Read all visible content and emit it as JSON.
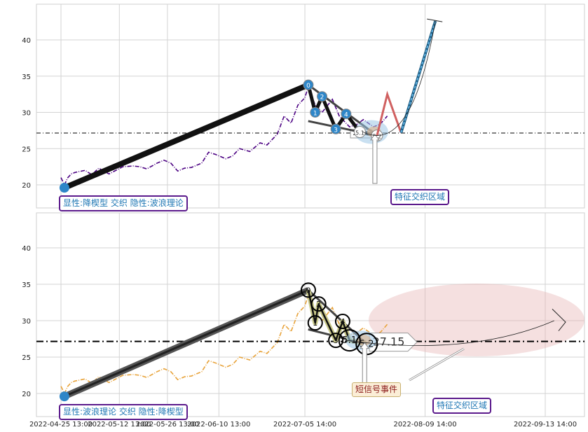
{
  "chart_data": [
    {
      "type": "line",
      "panel": "top",
      "ylim": [
        16.5,
        45
      ],
      "yticks": [
        20,
        25,
        30,
        35,
        40
      ],
      "grid": true,
      "series": [
        {
          "values": [
            [
              "2022-04-25 13:00",
              21.0
            ],
            [
              "2022-04-26 13:00",
              20.0
            ],
            [
              "2022-04-27 13:00",
              21.0
            ],
            [
              "2022-04-28 13:00",
              21.5
            ],
            [
              "2022-04-29 13:00",
              21.7
            ],
            [
              "2022-05-02 13:00",
              22.0
            ],
            [
              "2022-05-04 13:00",
              21.4
            ],
            [
              "2022-05-06 13:00",
              22.3
            ],
            [
              "2022-05-09 13:00",
              21.5
            ],
            [
              "2022-05-11 13:00",
              22.0
            ],
            [
              "2022-05-13 13:00",
              22.5
            ],
            [
              "2022-05-16 13:00",
              22.6
            ],
            [
              "2022-05-18 13:00",
              22.5
            ],
            [
              "2022-05-20 13:00",
              22.2
            ],
            [
              "2022-05-23 13:00",
              23.0
            ],
            [
              "2022-05-25 13:00",
              23.4
            ],
            [
              "2022-05-27 13:00",
              23.0
            ],
            [
              "2022-05-29 13:00",
              21.9
            ],
            [
              "2022-05-31 13:00",
              22.3
            ],
            [
              "2022-06-02 13:00",
              22.4
            ],
            [
              "2022-06-05 13:00",
              23.0
            ],
            [
              "2022-06-07 13:00",
              24.5
            ],
            [
              "2022-06-09 13:00",
              24.2
            ],
            [
              "2022-06-12 13:00",
              23.6
            ],
            [
              "2022-06-14 13:00",
              24.0
            ],
            [
              "2022-06-16 13:00",
              25.0
            ],
            [
              "2022-06-19 13:00",
              24.6
            ],
            [
              "2022-06-22 13:00",
              25.8
            ],
            [
              "2022-06-24 13:00",
              25.5
            ],
            [
              "2022-06-27 13:00",
              27.0
            ],
            [
              "2022-06-29 13:00",
              29.5
            ],
            [
              "2022-07-01 13:00",
              28.5
            ],
            [
              "2022-07-03 13:00",
              31.0
            ],
            [
              "2022-07-05 13:00",
              32.0
            ],
            [
              "2022-07-06 14:00",
              33.5
            ],
            [
              "2022-07-08 14:00",
              31.0
            ],
            [
              "2022-07-10 14:00",
              30.0
            ],
            [
              "2022-07-13 14:00",
              31.8
            ],
            [
              "2022-07-15 14:00",
              29.5
            ],
            [
              "2022-07-18 14:00",
              28.0
            ],
            [
              "2022-07-20 14:00",
              28.3
            ],
            [
              "2022-07-22 14:00",
              29.0
            ],
            [
              "2022-07-25 14:00",
              28.0
            ],
            [
              "2022-07-27 14:00",
              28.4
            ],
            [
              "2022-07-29 14:00",
              29.5
            ]
          ]
        }
      ],
      "zigzag": [
        {
          "label": "0",
          "x": "2022-07-06 14:00",
          "y": 33.8
        },
        {
          "label": "1",
          "x": "2022-07-08 14:00",
          "y": 30.0
        },
        {
          "label": "2",
          "x": "2022-07-10 14:00",
          "y": 32.2
        },
        {
          "label": "3",
          "x": "2022-07-14 14:00",
          "y": 27.7
        },
        {
          "label": "4",
          "x": "2022-07-17 14:00",
          "y": 29.8
        },
        {
          "label": "5.1",
          "x": "2022-07-21 14:00",
          "y": 27.3
        },
        {
          "label": "5.2",
          "x": "2022-07-26 14:00",
          "y": 26.8
        }
      ],
      "start_point": {
        "x": "2022-04-26 13:00",
        "y": 19.6
      },
      "hline": {
        "value": 27.15,
        "label": "27.15"
      },
      "projection": {
        "peak": {
          "x": "2022-07-29 14:00",
          "y": 32.5
        },
        "trough": {
          "x": "2022-08-02 14:00",
          "y": 27.2
        },
        "target": {
          "x": "2022-08-12 14:00",
          "y": 42.6
        }
      },
      "annotations": {
        "pattern_box": "显性:降楔型 交织 隐性:波浪理论",
        "feature_box": "特征交织区域"
      }
    },
    {
      "type": "line",
      "panel": "bottom",
      "ylim": [
        16.5,
        45
      ],
      "yticks": [
        20,
        25,
        30,
        35,
        40
      ],
      "grid": true,
      "series": [
        {
          "values": [
            [
              "2022-04-25 13:00",
              21.0
            ],
            [
              "2022-04-26 13:00",
              20.0
            ],
            [
              "2022-04-27 13:00",
              21.0
            ],
            [
              "2022-04-28 13:00",
              21.5
            ],
            [
              "2022-04-29 13:00",
              21.7
            ],
            [
              "2022-05-02 13:00",
              22.0
            ],
            [
              "2022-05-04 13:00",
              21.4
            ],
            [
              "2022-05-06 13:00",
              22.3
            ],
            [
              "2022-05-09 13:00",
              21.5
            ],
            [
              "2022-05-11 13:00",
              22.0
            ],
            [
              "2022-05-13 13:00",
              22.5
            ],
            [
              "2022-05-16 13:00",
              22.6
            ],
            [
              "2022-05-18 13:00",
              22.5
            ],
            [
              "2022-05-20 13:00",
              22.2
            ],
            [
              "2022-05-23 13:00",
              23.0
            ],
            [
              "2022-05-25 13:00",
              23.4
            ],
            [
              "2022-05-27 13:00",
              23.0
            ],
            [
              "2022-05-29 13:00",
              21.9
            ],
            [
              "2022-05-31 13:00",
              22.3
            ],
            [
              "2022-06-02 13:00",
              22.4
            ],
            [
              "2022-06-05 13:00",
              23.0
            ],
            [
              "2022-06-07 13:00",
              24.5
            ],
            [
              "2022-06-09 13:00",
              24.2
            ],
            [
              "2022-06-12 13:00",
              23.6
            ],
            [
              "2022-06-14 13:00",
              24.0
            ],
            [
              "2022-06-16 13:00",
              25.0
            ],
            [
              "2022-06-19 13:00",
              24.6
            ],
            [
              "2022-06-22 13:00",
              25.8
            ],
            [
              "2022-06-24 13:00",
              25.5
            ],
            [
              "2022-06-27 13:00",
              27.0
            ],
            [
              "2022-06-29 13:00",
              29.5
            ],
            [
              "2022-07-01 13:00",
              28.5
            ],
            [
              "2022-07-03 13:00",
              31.0
            ],
            [
              "2022-07-05 13:00",
              32.0
            ],
            [
              "2022-07-06 14:00",
              33.5
            ],
            [
              "2022-07-08 14:00",
              31.0
            ],
            [
              "2022-07-10 14:00",
              30.0
            ],
            [
              "2022-07-13 14:00",
              31.8
            ],
            [
              "2022-07-15 14:00",
              29.5
            ],
            [
              "2022-07-18 14:00",
              28.0
            ],
            [
              "2022-07-20 14:00",
              28.3
            ],
            [
              "2022-07-22 14:00",
              29.0
            ],
            [
              "2022-07-25 14:00",
              28.0
            ],
            [
              "2022-07-27 14:00",
              28.4
            ],
            [
              "2022-07-29 14:00",
              29.5
            ]
          ]
        }
      ],
      "zigzag": [
        {
          "label": "0",
          "x": "2022-07-06 14:00",
          "y": 34.2
        },
        {
          "label": "1",
          "x": "2022-07-08 14:00",
          "y": 29.7
        },
        {
          "label": "2",
          "x": "2022-07-09 14:00",
          "y": 32.3
        },
        {
          "label": "3",
          "x": "2022-07-14 14:00",
          "y": 27.3
        },
        {
          "label": "4",
          "x": "2022-07-16 14:00",
          "y": 29.9
        },
        {
          "label": "5.1",
          "x": "2022-07-18 14:00",
          "y": 27.3
        },
        {
          "label": "5.2",
          "x": "2022-07-23 14:00",
          "y": 26.8
        }
      ],
      "start_point": {
        "x": "2022-04-26 13:00",
        "y": 19.6
      },
      "hline": {
        "value": 27.15,
        "label": "27.15"
      },
      "annotations": {
        "pattern_box": "显性:波浪理论 交织 隐性:降楔型",
        "feature_box": "特征交织区域",
        "signal_box": "短信号事件"
      }
    }
  ],
  "xticks": [
    "2022-04-25 13:00",
    "2022-05-12 13:00",
    "2022-05-26 13:00",
    "2022-06-10 13:00",
    "2022-07-05 14:00",
    "2022-08-09 14:00",
    "2022-09-13 14:00"
  ],
  "colors": {
    "top_series": "#4b0082",
    "bottom_series": "#e8a33a",
    "zigzag": "#111111",
    "marker": "#2e86c8",
    "box_border": "#5b1a8c",
    "box_text_blue": "#1f77b4",
    "signal_text": "#8b1a1a",
    "projection_red": "#d06060",
    "projection_blue": "#5fb0e0"
  }
}
